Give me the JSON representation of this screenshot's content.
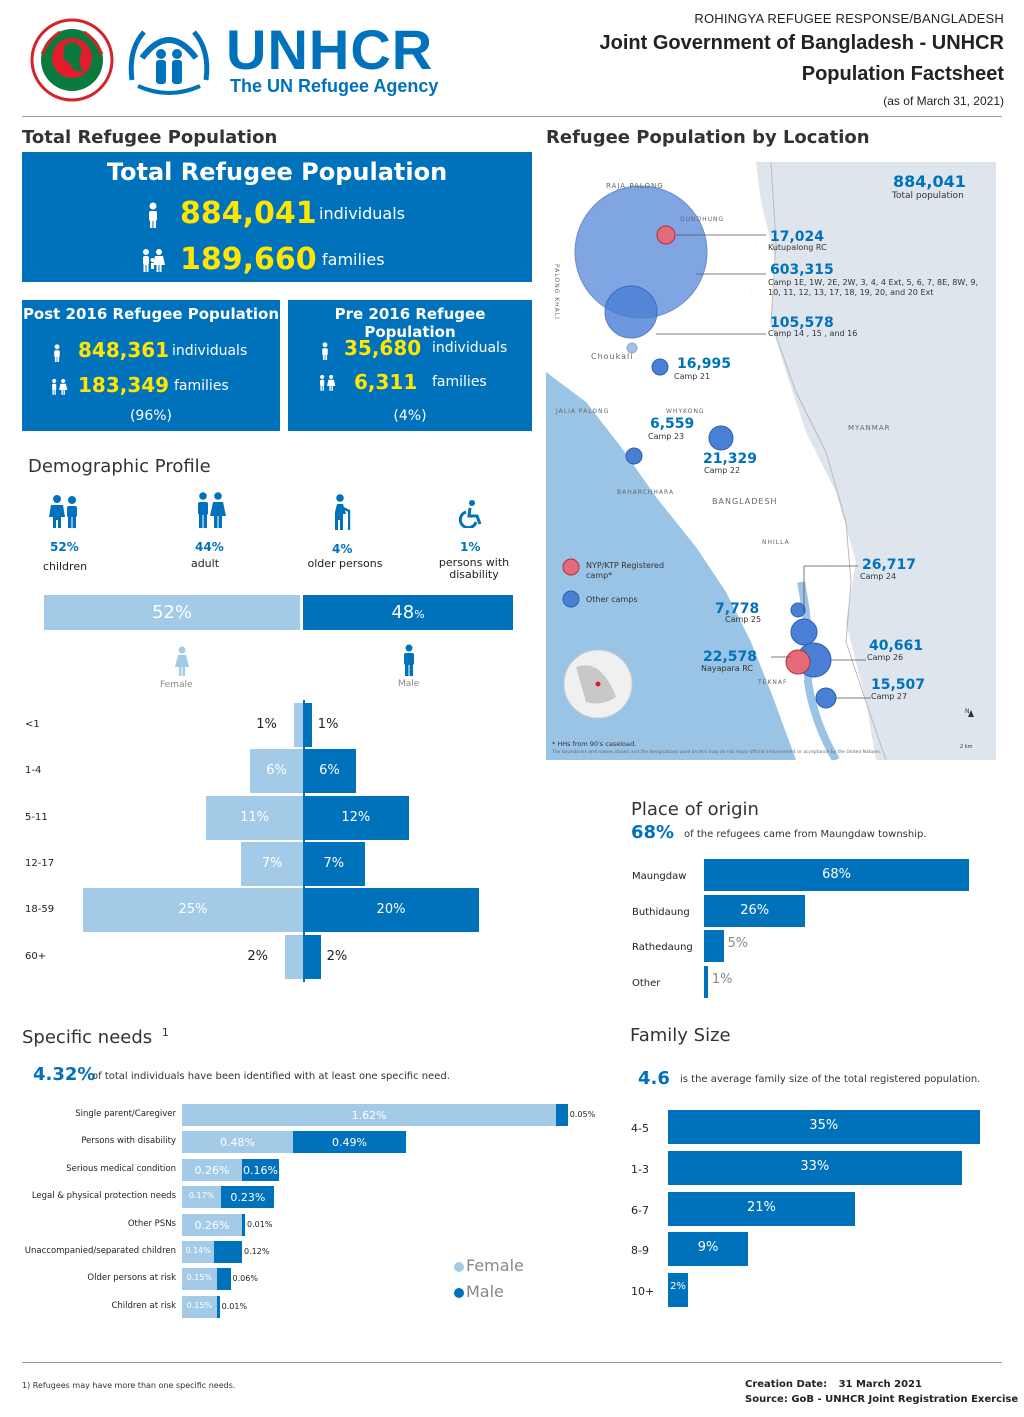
{
  "header": {
    "top_line": "ROHINGYA REFUGEE RESPONSE/BANGLADESH",
    "title_line1": "Joint Government of Bangladesh - UNHCR",
    "title_line2": "Population Factsheet",
    "date": "(as of March 31, 2021)",
    "logo_text": "UNHCR",
    "logo_sub": "The UN Refugee Agency"
  },
  "colors": {
    "primary": "#0072bc",
    "light": "#a3cbe8",
    "yellow": "#ffe600",
    "map_red": "#e56a7a",
    "map_blue": "#4a7fd6"
  },
  "total": {
    "section_title": "Total Refugee Population",
    "box_title": "Total Refugee Population",
    "individuals": "884,041",
    "individuals_label": "individuals",
    "families": "189,660",
    "families_label": "families"
  },
  "post2016": {
    "title": "Post 2016 Refugee Population",
    "individuals": "848,361",
    "individuals_label": "individuals",
    "families": "183,349",
    "families_label": "families",
    "share": "(96%)"
  },
  "pre2016": {
    "title": "Pre 2016 Refugee Population",
    "individuals": "35,680",
    "individuals_label": "individuals",
    "families": "6,311",
    "families_label": "families",
    "share": "(4%)"
  },
  "demographic": {
    "title": "Demographic Profile",
    "groups": [
      {
        "pct": "52%",
        "label": "children",
        "icon": "children-icon"
      },
      {
        "pct": "44%",
        "label": "adult",
        "icon": "adult-icon"
      },
      {
        "pct": "4%",
        "label": "older persons",
        "icon": "older-person-icon"
      },
      {
        "pct": "1%",
        "label": "persons with disability",
        "icon": "wheelchair-icon"
      }
    ],
    "female_pct": "52%",
    "male_pct": "48",
    "male_pct_unit": "%",
    "female_label": "Female",
    "male_label": "Male",
    "age_groups": [
      {
        "label": "<1",
        "female": 1,
        "male": 1,
        "female_text": "1%",
        "male_text": "1%"
      },
      {
        "label": "1-4",
        "female": 6,
        "male": 6,
        "female_text": "6%",
        "male_text": "6%"
      },
      {
        "label": "5-11",
        "female": 11,
        "male": 12,
        "female_text": "11%",
        "male_text": "12%"
      },
      {
        "label": "12-17",
        "female": 7,
        "male": 7,
        "female_text": "7%",
        "male_text": "7%"
      },
      {
        "label": "18-59",
        "female": 25,
        "male": 20,
        "female_text": "25%",
        "male_text": "20%"
      },
      {
        "label": "60+",
        "female": 2,
        "male": 2,
        "female_text": "2%",
        "male_text": "2%"
      }
    ]
  },
  "map": {
    "section_title": "Refugee Population by Location",
    "total_value": "884,041",
    "total_label": "Total population",
    "place_labels": [
      "RAJA PALONG",
      "PALONG KHALI",
      "Choukali",
      "JALIA PALONG",
      "WHYKONG",
      "BAHARCHHARA",
      "BANGLADESH",
      "MYANMAR",
      "NHILLA",
      "TEKNAF",
      "GUNDHUNG"
    ],
    "callouts": [
      {
        "value": "17,024",
        "label": "Kutupalong RC"
      },
      {
        "value": "603,315",
        "label": "Camp 1E, 1W, 2E, 2W, 3, 4, 4 Ext, 5, 6, 7, 8E, 8W, 9, 10, 11, 12, 13, 17, 18, 19, 20, and 20 Ext"
      },
      {
        "value": "105,578",
        "label": "Camp 14 , 15 , and 16"
      },
      {
        "value": "16,995",
        "label": "Camp 21"
      },
      {
        "value": "6,559",
        "label": "Camp 23"
      },
      {
        "value": "21,329",
        "label": "Camp 22"
      },
      {
        "value": "26,717",
        "label": "Camp 24"
      },
      {
        "value": "7,778",
        "label": "Camp 25"
      },
      {
        "value": "40,661",
        "label": "Camp 26"
      },
      {
        "value": "22,578",
        "label": "Nayapara RC"
      },
      {
        "value": "15,507",
        "label": "Camp 27"
      }
    ],
    "legend": [
      {
        "label": "NYP/KTP Registered camp*"
      },
      {
        "label": "Other camps"
      }
    ],
    "footnote": "* HHs from 90's caseload.",
    "disclaimer": "The boundaries and names shown and the designations used on this map do not imply official endorsement or acceptance by the United Nations.",
    "scale": "2 km",
    "north": "N"
  },
  "origin": {
    "title": "Place of origin",
    "headline_pct": "68%",
    "headline_text": "of the refugees came from Maungdaw township.",
    "chart_data": {
      "type": "bar",
      "categories": [
        "Maungdaw",
        "Buthidaung",
        "Rathedaung",
        "Other"
      ],
      "values": [
        68,
        26,
        5,
        1
      ],
      "labels": [
        "68%",
        "26%",
        "5%",
        "1%"
      ]
    }
  },
  "specific_needs": {
    "title": "Specific needs",
    "title_sup": "1",
    "headline_pct": "4.32%",
    "headline_text": "of total individuals have been identified with at least one specific need.",
    "legend_female": "Female",
    "legend_male": "Male",
    "chart_data": {
      "type": "bar",
      "categories": [
        "Single parent/Caregiver",
        "Persons with disability",
        "Serious medical condition",
        "Legal & physical protection needs",
        "Other PSNs",
        "Unaccompanied/separated children",
        "Older persons at risk",
        "Children at risk"
      ],
      "series": [
        {
          "name": "Female",
          "values": [
            1.62,
            0.48,
            0.26,
            0.17,
            0.26,
            0.14,
            0.15,
            0.15
          ],
          "labels": [
            "1.62%",
            "0.48%",
            "0.26%",
            "0.17%",
            "0.26%",
            "0.14%",
            "0.15%",
            "0.15%"
          ]
        },
        {
          "name": "Male",
          "values": [
            0.05,
            0.49,
            0.16,
            0.23,
            0.01,
            0.12,
            0.06,
            0.01
          ],
          "labels": [
            "0.05%",
            "0.49%",
            "0.16%",
            "0.23%",
            "0.01%",
            "0.12%",
            "0.06%",
            "0.01%"
          ]
        }
      ]
    }
  },
  "family_size": {
    "title": "Family Size",
    "headline_value": "4.6",
    "headline_text": "is the average family size of the total registered population.",
    "chart_data": {
      "type": "bar",
      "categories": [
        "4-5",
        "1-3",
        "6-7",
        "8-9",
        "10+"
      ],
      "values": [
        35,
        33,
        21,
        9,
        2
      ],
      "labels": [
        "35%",
        "33%",
        "21%",
        "9%",
        "2%"
      ]
    }
  },
  "footer": {
    "note": "1) Refugees may have more than one specific needs.",
    "creation_label": "Creation Date:",
    "creation_date": "31 March 2021",
    "source_label": "Source:",
    "source": "GoB - UNHCR Joint Registration Exercise"
  }
}
